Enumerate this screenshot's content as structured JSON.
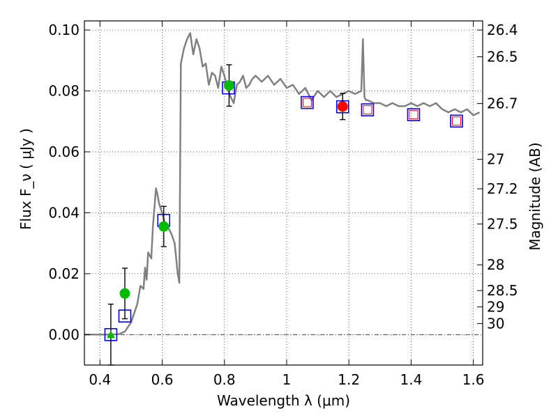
{
  "chart_data": {
    "type": "scatter",
    "xlabel": "Wavelength  λ (μm)",
    "ylabel": "Flux  F_ν  ( μJy )",
    "ylabel_right": "Magnitude (AB)",
    "xlim": [
      0.35,
      1.63
    ],
    "ylim": [
      -0.01,
      0.103
    ],
    "grid": true,
    "x_ticks": [
      {
        "value": 0.4,
        "label": "0.4"
      },
      {
        "value": 0.6,
        "label": "0.6"
      },
      {
        "value": 0.8,
        "label": "0.8"
      },
      {
        "value": 1.0,
        "label": "1"
      },
      {
        "value": 1.2,
        "label": "1.2"
      },
      {
        "value": 1.4,
        "label": "1.4"
      },
      {
        "value": 1.6,
        "label": "1.6"
      }
    ],
    "y_ticks": [
      {
        "value": 0.0,
        "label": "0.00"
      },
      {
        "value": 0.02,
        "label": "0.02"
      },
      {
        "value": 0.04,
        "label": "0.04"
      },
      {
        "value": 0.06,
        "label": "0.06"
      },
      {
        "value": 0.08,
        "label": "0.08"
      },
      {
        "value": 0.1,
        "label": "0.10"
      }
    ],
    "mag_ticks": [
      "26.4",
      "26.5",
      "26.7",
      "27",
      "27.2",
      "27.5",
      "28",
      "28.5",
      "29",
      "30"
    ],
    "colors": {
      "sed": "#808080",
      "model_box": "#0000ff",
      "green_points": "#00bb00",
      "red_point": "#ff0000",
      "red_open_box": "#ff0000",
      "error_bar": "#000000"
    },
    "sed_model": {
      "x": [
        0.35,
        0.43,
        0.46,
        0.48,
        0.5,
        0.52,
        0.53,
        0.54,
        0.545,
        0.55,
        0.555,
        0.56,
        0.565,
        0.57,
        0.58,
        0.585,
        0.59,
        0.6,
        0.61,
        0.62,
        0.63,
        0.64,
        0.65,
        0.655,
        0.66,
        0.67,
        0.68,
        0.69,
        0.7,
        0.71,
        0.72,
        0.73,
        0.74,
        0.75,
        0.76,
        0.77,
        0.78,
        0.79,
        0.8,
        0.81,
        0.82,
        0.83,
        0.84,
        0.85,
        0.86,
        0.87,
        0.88,
        0.89,
        0.9,
        0.92,
        0.94,
        0.96,
        0.98,
        1.0,
        1.02,
        1.04,
        1.06,
        1.08,
        1.1,
        1.12,
        1.14,
        1.16,
        1.18,
        1.2,
        1.22,
        1.24,
        1.245,
        1.25,
        1.255,
        1.26,
        1.28,
        1.3,
        1.32,
        1.34,
        1.36,
        1.38,
        1.4,
        1.42,
        1.44,
        1.46,
        1.48,
        1.5,
        1.52,
        1.54,
        1.56,
        1.58,
        1.6,
        1.62
      ],
      "y": [
        0.0,
        0.0,
        0.0001,
        0.001,
        0.004,
        0.01,
        0.016,
        0.015,
        0.022,
        0.018,
        0.027,
        0.026,
        0.025,
        0.035,
        0.048,
        0.046,
        0.043,
        0.04,
        0.036,
        0.035,
        0.033,
        0.03,
        0.02,
        0.017,
        0.089,
        0.094,
        0.097,
        0.099,
        0.092,
        0.097,
        0.094,
        0.088,
        0.089,
        0.082,
        0.086,
        0.085,
        0.081,
        0.088,
        0.085,
        0.081,
        0.078,
        0.076,
        0.082,
        0.083,
        0.085,
        0.081,
        0.082,
        0.084,
        0.085,
        0.083,
        0.085,
        0.082,
        0.084,
        0.081,
        0.082,
        0.079,
        0.081,
        0.077,
        0.08,
        0.078,
        0.08,
        0.078,
        0.079,
        0.08,
        0.079,
        0.08,
        0.097,
        0.078,
        0.077,
        0.077,
        0.076,
        0.076,
        0.075,
        0.076,
        0.075,
        0.075,
        0.076,
        0.075,
        0.076,
        0.075,
        0.076,
        0.074,
        0.073,
        0.074,
        0.073,
        0.074,
        0.072,
        0.073
      ]
    },
    "model_boxes": [
      {
        "x": 0.435,
        "y": 0.0
      },
      {
        "x": 0.48,
        "y": 0.0061
      },
      {
        "x": 0.605,
        "y": 0.0375
      },
      {
        "x": 0.813,
        "y": 0.081
      },
      {
        "x": 1.066,
        "y": 0.0762
      },
      {
        "x": 1.18,
        "y": 0.0748
      },
      {
        "x": 1.26,
        "y": 0.0738
      },
      {
        "x": 1.408,
        "y": 0.0722
      },
      {
        "x": 1.546,
        "y": 0.0701
      }
    ],
    "red_open_boxes": [
      {
        "x": 1.066,
        "y": 0.0762
      },
      {
        "x": 1.26,
        "y": 0.0738
      },
      {
        "x": 1.408,
        "y": 0.0722
      },
      {
        "x": 1.546,
        "y": 0.0701
      }
    ],
    "green_points": [
      {
        "x": 0.435,
        "y": 0.0,
        "err": 0.01,
        "marker": "triangle"
      },
      {
        "x": 0.48,
        "y": 0.0135,
        "err": 0.0083,
        "marker": "circle"
      },
      {
        "x": 0.605,
        "y": 0.0355,
        "err": 0.0066,
        "marker": "circle"
      },
      {
        "x": 0.815,
        "y": 0.0818,
        "err": 0.0068,
        "marker": "circle"
      }
    ],
    "red_points": [
      {
        "x": 1.18,
        "y": 0.0749,
        "err": 0.0043,
        "marker": "circle"
      }
    ]
  }
}
